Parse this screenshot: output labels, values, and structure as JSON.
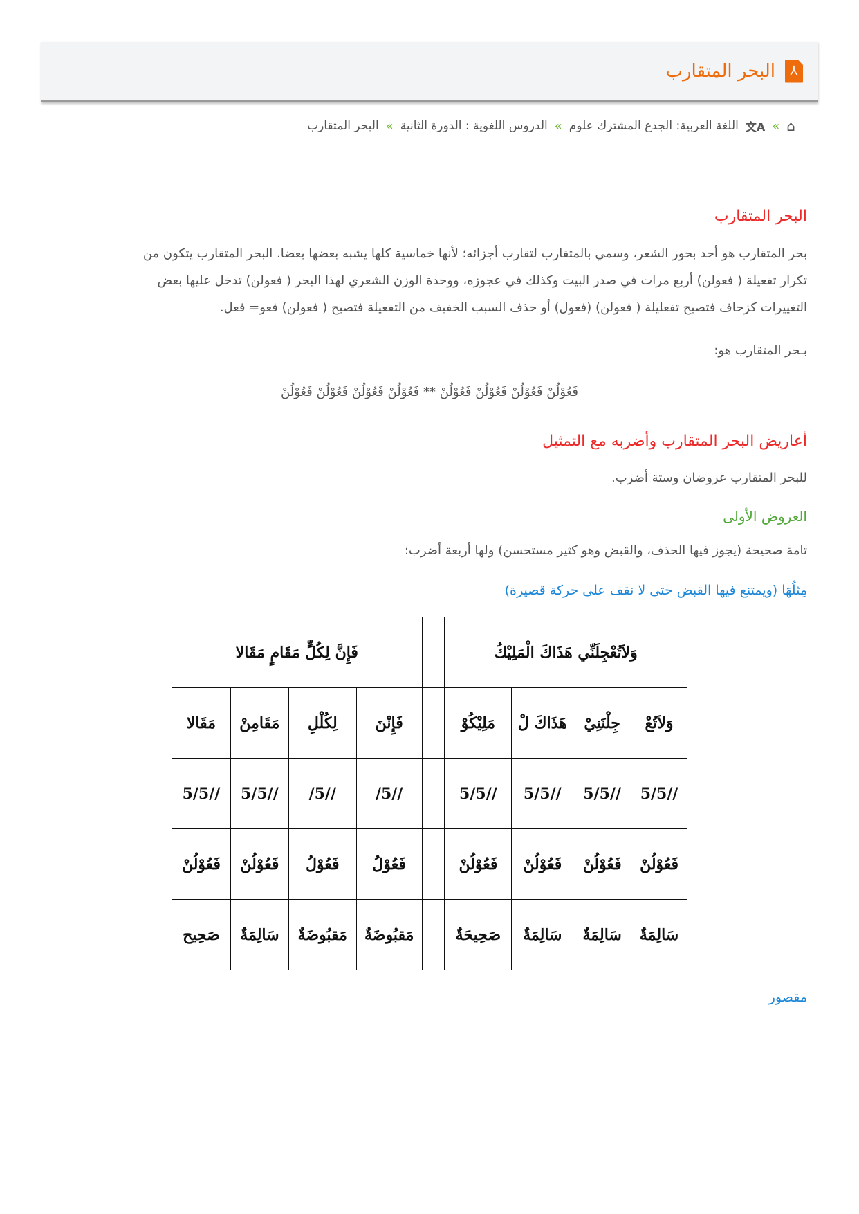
{
  "header": {
    "title": "البحر المتقارب",
    "icon": "pdf-icon"
  },
  "breadcrumb": [
    {
      "label": "اللغة العربية: الجذع المشترك علوم"
    },
    {
      "label": "الدروس اللغوية : الدورة الثانية"
    },
    {
      "label": "البحر المتقارب"
    }
  ],
  "breadcrumb_sep": "»",
  "colors": {
    "title": "#ee6c0c",
    "heading": "#ec2a2a",
    "subheading": "#52a83a",
    "link": "#1e88d8"
  },
  "section1": {
    "heading": "البحر المتقارب",
    "lines": [
      "بحر المتقارب هو أحد بحور الشعر، وسمي بالمتقارب لتقارب أجزائه؛ لأنها خماسية كلها يشبه بعضها بعضا. البحر المتقارب يتكون من",
      "تكرار تفعيلة ( فعولن) أربع مرات في صدر البيت وكذلك في عجوزه، ووحدة الوزن الشعري لهذا البحر ( فعولن) تدخل عليها بعض",
      "التغييرات كزحاف فتصبح تفعليلة ( فعولن) (فعول) أو حذف السبب الخفيف من التفعيلة فتصبح ( فعولن) فعو= فعل."
    ],
    "intro": "بـحر المتقارب هو:",
    "verse": "فَعُوْلُنْ فَعُوْلُنْ فَعُوْلُنْ فَعُوْلُنْ ** فَعُوْلُنْ فَعُوْلُنْ فَعُوْلُنْ فَعُوْلُنْ"
  },
  "section2": {
    "heading": "أعاريض البحر المتقارب وأضربه مع التمثيل",
    "text": "للبحر المتقارب عروضان وستة أضرب.",
    "sub": "العروض الأولى",
    "desc": "تامة صحيحة (يجوز فيها الحذف، والقبض وهو كثير مستحسن) ولها أربعة أضرب:",
    "example": "مِثلُهَا (ويمتنع فيها القبض حتى لا نقف على حركة قصيرة)"
  },
  "table": {
    "right_verse": "وَلاَتُعْجِلَنِّي هَذَاكَ الْمَلِيْكُ",
    "left_verse": "فَإِنَّ لِكُلٍّ مَقَامٍ مَقَالا",
    "rows": [
      [
        "وَلاَتُعْ",
        "جِلْنَنِيْ",
        "هَذَاكَ لْ",
        "مَلِيْكُوْ",
        "فَإِنْنَ",
        "لِكُلْلِ",
        "مَقَامِنْ",
        "مَقَالا"
      ],
      [
        "5/5//",
        "5/5//",
        "5/5//",
        "5/5//",
        "/5//",
        "/5//",
        "5/5//",
        "5/5//"
      ],
      [
        "فَعُوْلُنْ",
        "فَعُوْلُنْ",
        "فَعُوْلُنْ",
        "فَعُوْلُنْ",
        "فَعُوْلُ",
        "فَعُوْلُ",
        "فَعُوْلُنْ",
        "فَعُوْلُنْ"
      ],
      [
        "سَالِمَةٌ",
        "سَالِمَةٌ",
        "سَالِمَةٌ",
        "صَحِيحَةٌ",
        "مَقبُوضَةٌ",
        "مَقبُوضَةٌ",
        "سَالِمَةٌ",
        "صَحِيح"
      ]
    ]
  },
  "footer_link": "مقصور"
}
